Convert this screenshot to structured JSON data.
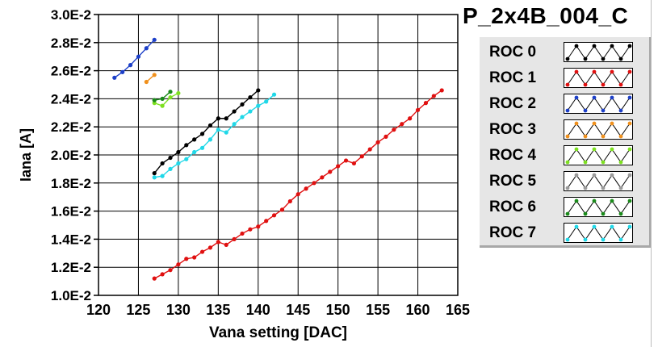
{
  "chart_data": {
    "type": "line",
    "title": "P_2x4B_004_C",
    "xlabel": "Vana setting [DAC]",
    "ylabel": "Iana [A]",
    "xlim": [
      120,
      165
    ],
    "ylim": [
      0.01,
      0.03
    ],
    "x_ticks": [
      "120",
      "125",
      "130",
      "135",
      "140",
      "145",
      "150",
      "155",
      "160",
      "165"
    ],
    "y_ticks": [
      "1.0E-2",
      "1.2E-2",
      "1.4E-2",
      "1.6E-2",
      "1.8E-2",
      "2.0E-2",
      "2.2E-2",
      "2.4E-2",
      "2.6E-2",
      "2.8E-2",
      "3.0E-2"
    ],
    "grid": true,
    "legend_position": "right",
    "series": [
      {
        "name": "ROC 0",
        "color": "#000000",
        "x": [
          127,
          128,
          129,
          130,
          131,
          132,
          133,
          134,
          135,
          136,
          137,
          138,
          139,
          140
        ],
        "y": [
          0.0187,
          0.0194,
          0.0198,
          0.0202,
          0.0207,
          0.0211,
          0.0215,
          0.0221,
          0.0226,
          0.0226,
          0.0231,
          0.0236,
          0.0241,
          0.0246
        ]
      },
      {
        "name": "ROC 1",
        "color": "#e01010",
        "x": [
          127,
          128,
          129,
          130,
          131,
          132,
          133,
          134,
          135,
          136,
          137,
          138,
          139,
          140,
          141,
          142,
          143,
          144,
          145,
          146,
          147,
          148,
          149,
          150,
          151,
          152,
          153,
          154,
          155,
          156,
          157,
          158,
          159,
          160,
          161,
          162,
          163
        ],
        "y": [
          0.0112,
          0.0115,
          0.0118,
          0.0122,
          0.0126,
          0.0127,
          0.0131,
          0.0134,
          0.0138,
          0.0136,
          0.014,
          0.0144,
          0.0147,
          0.0149,
          0.0153,
          0.0157,
          0.0161,
          0.0167,
          0.0172,
          0.0176,
          0.018,
          0.0184,
          0.0188,
          0.0192,
          0.0196,
          0.0194,
          0.0199,
          0.0204,
          0.0209,
          0.0213,
          0.0218,
          0.0222,
          0.0226,
          0.0232,
          0.0237,
          0.0242,
          0.0246
        ]
      },
      {
        "name": "ROC 2",
        "color": "#1c3fc8",
        "x": [
          122,
          123,
          124,
          125,
          126,
          127
        ],
        "y": [
          0.0255,
          0.0259,
          0.0264,
          0.027,
          0.0276,
          0.0282
        ]
      },
      {
        "name": "ROC 3",
        "color": "#f0901c",
        "x": [
          126,
          127
        ],
        "y": [
          0.0252,
          0.0257
        ]
      },
      {
        "name": "ROC 4",
        "color": "#7de020",
        "x": [
          127,
          128,
          129,
          130
        ],
        "y": [
          0.0237,
          0.0235,
          0.0241,
          0.0244
        ]
      },
      {
        "name": "ROC 5",
        "color": "#9a9a9a",
        "x": [],
        "y": []
      },
      {
        "name": "ROC 6",
        "color": "#1a8a1a",
        "x": [
          127,
          128,
          129
        ],
        "y": [
          0.0239,
          0.024,
          0.0245
        ]
      },
      {
        "name": "ROC 7",
        "color": "#20d8e8",
        "x": [
          127,
          128,
          129,
          130,
          131,
          132,
          133,
          134,
          135,
          136,
          137,
          138,
          139,
          140,
          141,
          142
        ],
        "y": [
          0.0184,
          0.0185,
          0.019,
          0.0194,
          0.0197,
          0.0202,
          0.0205,
          0.0211,
          0.0218,
          0.0216,
          0.0222,
          0.0227,
          0.0231,
          0.0235,
          0.0238,
          0.0243
        ]
      }
    ]
  }
}
